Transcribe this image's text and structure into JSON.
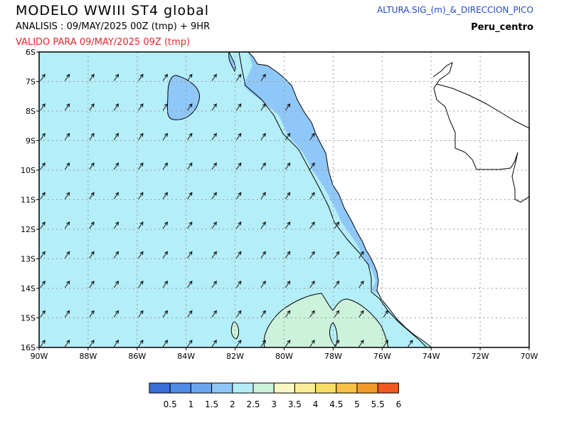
{
  "header": {
    "title": "MODELO WWIII ST4 global",
    "analysis": "ANALISIS : 09/MAY/2025 00Z  (tmp) + 9HR",
    "valid": "VALIDO PARA  09/MAY/2025 09Z  (tmp)",
    "variable": "ALTURA.SIG_(m)_&_DIRECCION_PICO",
    "region": "Peru_centro"
  },
  "axes": {
    "lat_labels": [
      "6S",
      "7S",
      "8S",
      "9S",
      "10S",
      "11S",
      "12S",
      "13S",
      "14S",
      "15S",
      "16S"
    ],
    "lon_labels": [
      "90W",
      "88W",
      "86W",
      "84W",
      "82W",
      "80W",
      "78W",
      "76W",
      "74W",
      "72W",
      "70W"
    ]
  },
  "colorbar": {
    "labels": [
      "0.5",
      "1",
      "1.5",
      "2",
      "2.5",
      "3",
      "3.5",
      "4",
      "4.5",
      "5",
      "5.5",
      "6"
    ],
    "colors": [
      "#3a6fd8",
      "#4f8ae6",
      "#6aa6f0",
      "#8fc8f8",
      "#b4eef8",
      "#ccf2dc",
      "#fbf7c4",
      "#f9ee99",
      "#f8dd68",
      "#f7c046",
      "#f49a2a",
      "#f05a20"
    ]
  },
  "colors": {
    "grid": "#9a9a9a",
    "land": "#ffffff",
    "arrow": "#111111",
    "coast": "#000000"
  },
  "arrows": {
    "direction_deg_from_north": 35
  }
}
